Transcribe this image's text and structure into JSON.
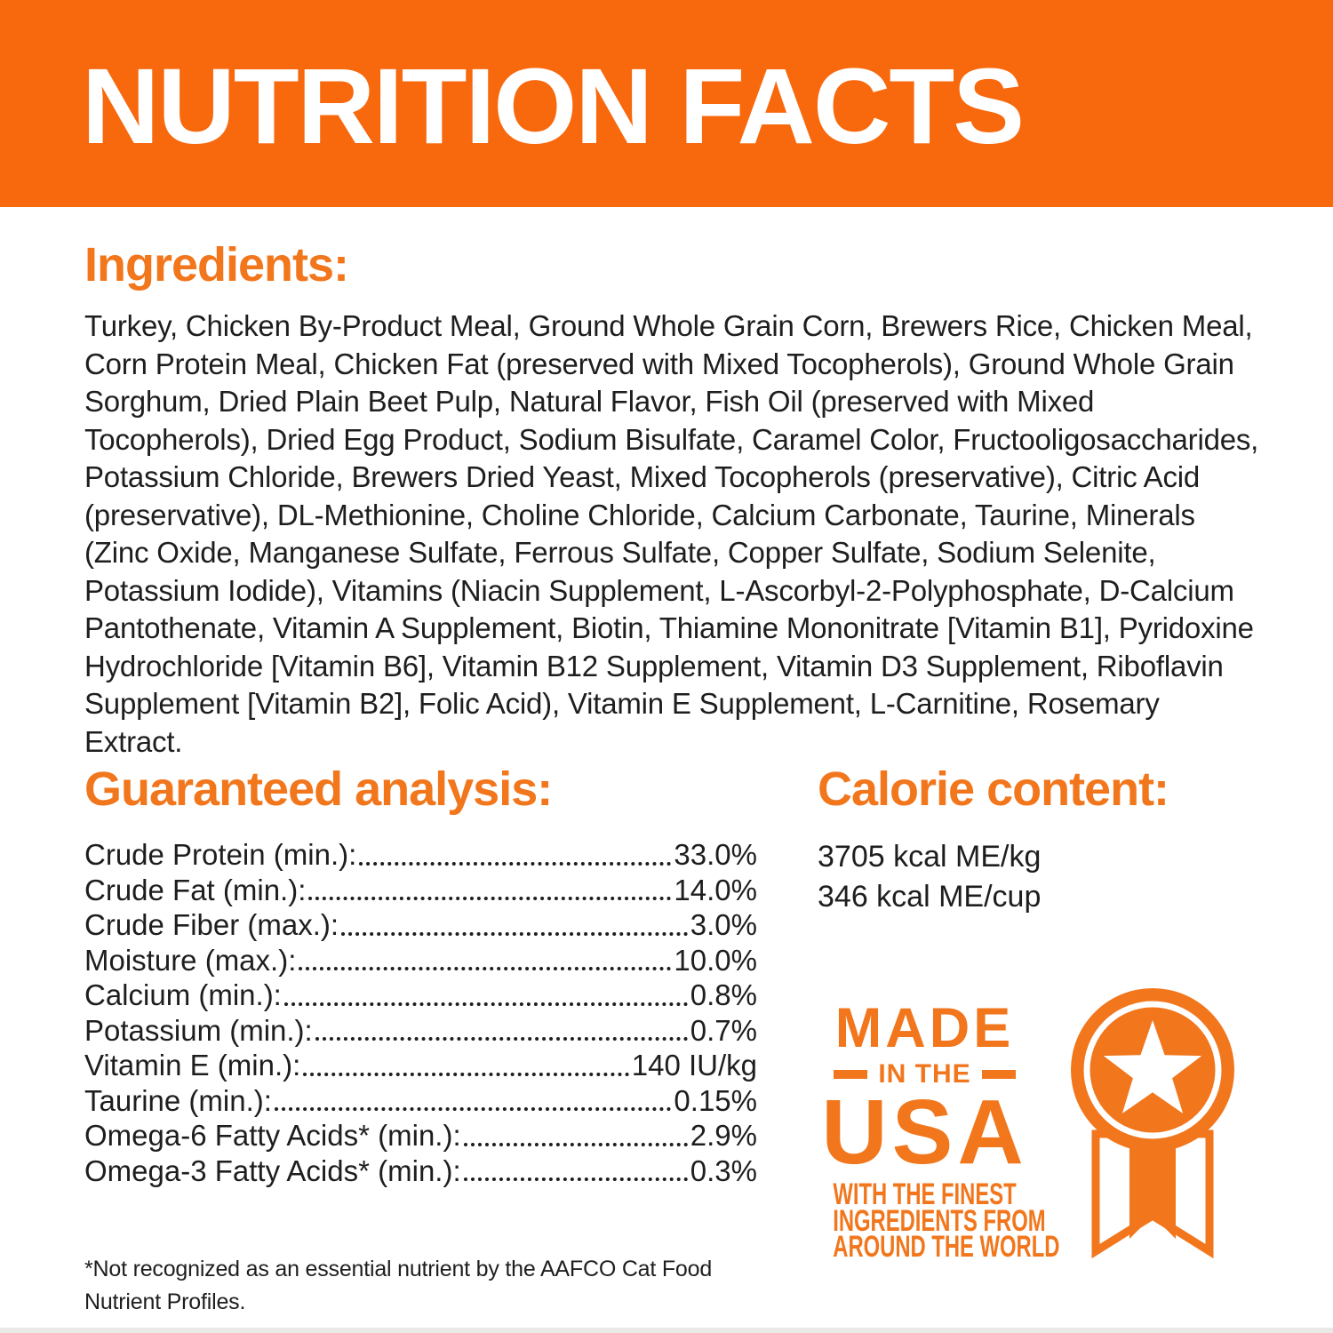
{
  "banner": {
    "title": "NUTRITION FACTS"
  },
  "colors": {
    "banner_orange": "#F8680D",
    "accent_orange": "#F1761C",
    "text_dark": "#1E1E1E"
  },
  "ingredients": {
    "heading": "Ingredients:",
    "text": "Turkey, Chicken By-Product Meal, Ground Whole Grain Corn, Brewers Rice, Chicken Meal, Corn Protein Meal, Chicken Fat (preserved with Mixed Tocopherols), Ground Whole Grain Sorghum, Dried Plain Beet Pulp, Natural Flavor, Fish Oil (preserved with Mixed Tocopherols), Dried Egg Product, Sodium Bisulfate, Caramel Color, Fructooligosaccharides, Potassium Chloride, Brewers Dried Yeast, Mixed Tocopherols (preservative), Citric Acid (preservative), DL-Methionine, Choline Chloride, Calcium Carbonate, Taurine, Minerals (Zinc Oxide, Manganese Sulfate, Ferrous Sulfate, Copper Sulfate, Sodium Selenite, Potassium Iodide), Vitamins (Niacin Supplement, L-Ascorbyl-2-Polyphosphate, D-Calcium Pantothenate, Vitamin A Supplement, Biotin, Thiamine Mononitrate [Vitamin B1], Pyridoxine Hydrochloride [Vitamin B6], Vitamin B12 Supplement, Vitamin D3 Supplement, Riboflavin Supplement [Vitamin B2], Folic Acid), Vitamin E Supplement, L-Carnitine, Rosemary Extract."
  },
  "guaranteed_analysis": {
    "heading": "Guaranteed analysis:",
    "rows": [
      {
        "label": "Crude Protein (min.):",
        "value": "33.0%"
      },
      {
        "label": "Crude Fat (min.):",
        "value": "14.0%"
      },
      {
        "label": "Crude Fiber (max.):",
        "value": "3.0%"
      },
      {
        "label": "Moisture (max.):",
        "value": "10.0%"
      },
      {
        "label": "Calcium (min.):",
        "value": "0.8%"
      },
      {
        "label": "Potassium (min.):",
        "value": "0.7%"
      },
      {
        "label": "Vitamin E (min.):",
        "value": "140 IU/kg"
      },
      {
        "label": "Taurine (min.):",
        "value": "0.15%"
      },
      {
        "label": "Omega-6 Fatty Acids* (min.):",
        "value": "2.9%"
      },
      {
        "label": "Omega-3 Fatty Acids* (min.):",
        "value": "0.3%"
      }
    ]
  },
  "calorie_content": {
    "heading": "Calorie content:",
    "kcal_per_kg": "3705 kcal ME/kg",
    "kcal_per_cup": "346 kcal ME/cup"
  },
  "made_in_usa": {
    "title_top": "MADE",
    "title_mid": "IN THE",
    "title_main": "USA",
    "subtitle_lines": [
      "WITH THE FINEST",
      "INGREDIENTS FROM",
      "AROUND THE WORLD"
    ],
    "badge_icon": "award-ribbon-star-icon"
  },
  "footnote": "*Not recognized as an essential nutrient by the AAFCO Cat Food Nutrient Profiles."
}
